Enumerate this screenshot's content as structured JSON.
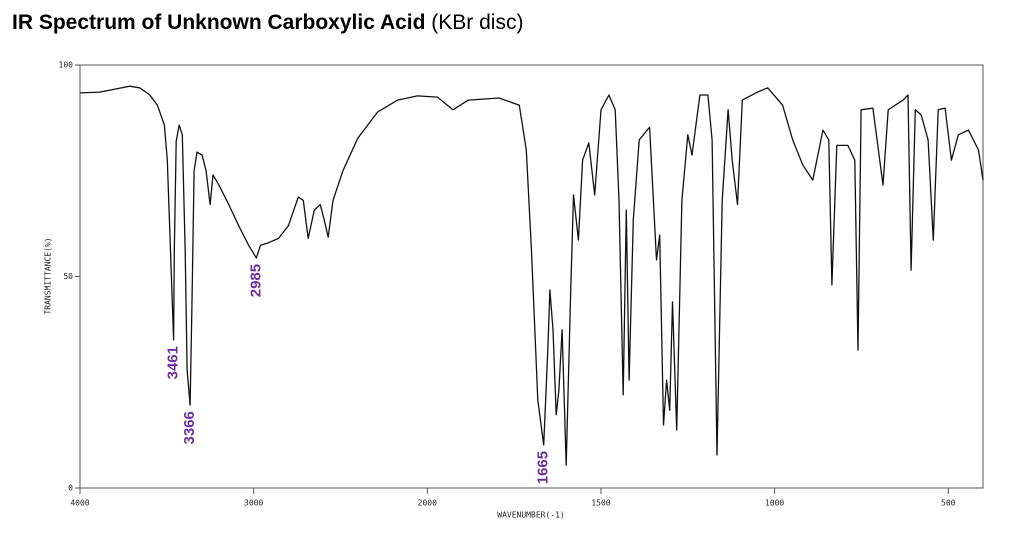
{
  "chart_data": {
    "type": "line",
    "title": "IR Spectrum of Unknown Carboxylic Acid",
    "subtitle": "(KBr disc)",
    "x_label": "WAVENUMBER(-1)",
    "y_label": "TRANSMITTANCE(%)",
    "color": "#111111",
    "x": [
      4000,
      3886,
      3714,
      3657,
      3600,
      3554,
      3514,
      3497,
      3480,
      3461,
      3457,
      3446,
      3429,
      3411,
      3394,
      3383,
      3366,
      3355,
      3343,
      3326,
      3297,
      3274,
      3251,
      3234,
      3200,
      3143,
      3086,
      3029,
      2985,
      2960,
      2914,
      2857,
      2800,
      2743,
      2714,
      2686,
      2651,
      2617,
      2594,
      2571,
      2543,
      2486,
      2400,
      2286,
      2171,
      2057,
      1971,
      1926,
      1882,
      1794,
      1735,
      1715,
      1700,
      1682,
      1665,
      1653,
      1647,
      1638,
      1629,
      1621,
      1612,
      1600,
      1588,
      1579,
      1565,
      1553,
      1535,
      1518,
      1500,
      1477,
      1459,
      1448,
      1436,
      1427,
      1419,
      1407,
      1390,
      1360,
      1340,
      1331,
      1320,
      1311,
      1302,
      1294,
      1282,
      1267,
      1250,
      1238,
      1215,
      1192,
      1180,
      1166,
      1151,
      1134,
      1122,
      1107,
      1093,
      1049,
      1020,
      977,
      948,
      919,
      890,
      861,
      844,
      835,
      821,
      789,
      769,
      760,
      751,
      717,
      688,
      673,
      630,
      616,
      607,
      595,
      578,
      558,
      543,
      529,
      509,
      491,
      471,
      442,
      413,
      400
    ],
    "values": [
      93.4,
      93.6,
      95,
      94.6,
      93,
      90.5,
      85.8,
      77.5,
      57.4,
      35,
      56,
      82,
      85.8,
      83.5,
      56,
      28,
      19.6,
      44,
      75,
      79.4,
      78.7,
      75,
      67,
      74,
      71.6,
      67,
      62,
      57.4,
      54.4,
      57.4,
      58,
      59,
      62,
      68.8,
      68,
      59,
      65.7,
      67,
      63.4,
      59.3,
      68,
      75,
      82.7,
      88.9,
      91.7,
      92.7,
      92.4,
      89.4,
      91.7,
      92.2,
      90.5,
      79.9,
      56,
      20.8,
      10.2,
      32.6,
      46.8,
      37.4,
      17.3,
      23.2,
      37.4,
      5.4,
      44,
      69.3,
      58.6,
      77.5,
      81.6,
      69.3,
      89.4,
      92.9,
      89.4,
      68,
      22,
      65.7,
      25.5,
      63.4,
      82.3,
      85.3,
      53.9,
      59.8,
      14.9,
      25.5,
      18.4,
      44,
      13.7,
      68,
      83.5,
      78.7,
      92.9,
      92.9,
      82.3,
      7.8,
      68,
      89.4,
      77.5,
      67,
      91.7,
      93.6,
      94.6,
      90.5,
      82.3,
      76.4,
      72.8,
      84.6,
      82.3,
      48,
      81,
      81,
      77.5,
      32.6,
      89.4,
      89.8,
      71.6,
      89.4,
      91.7,
      92.9,
      51.5,
      89.4,
      88.2,
      82.3,
      58.6,
      89.4,
      89.8,
      77.5,
      83.5,
      84.6,
      79.9,
      72.8
    ],
    "xlim": [
      4000,
      400
    ],
    "xticks": [
      4000,
      3000,
      2000,
      1500,
      1000,
      500
    ],
    "ylim": [
      0,
      100
    ],
    "yticks": [
      0,
      50,
      100
    ],
    "annotations": [
      {
        "text": "3461",
        "x": 3461
      },
      {
        "text": "3366",
        "x": 3366
      },
      {
        "text": "2985",
        "x": 2985
      },
      {
        "text": "1665",
        "x": 1665
      }
    ]
  }
}
